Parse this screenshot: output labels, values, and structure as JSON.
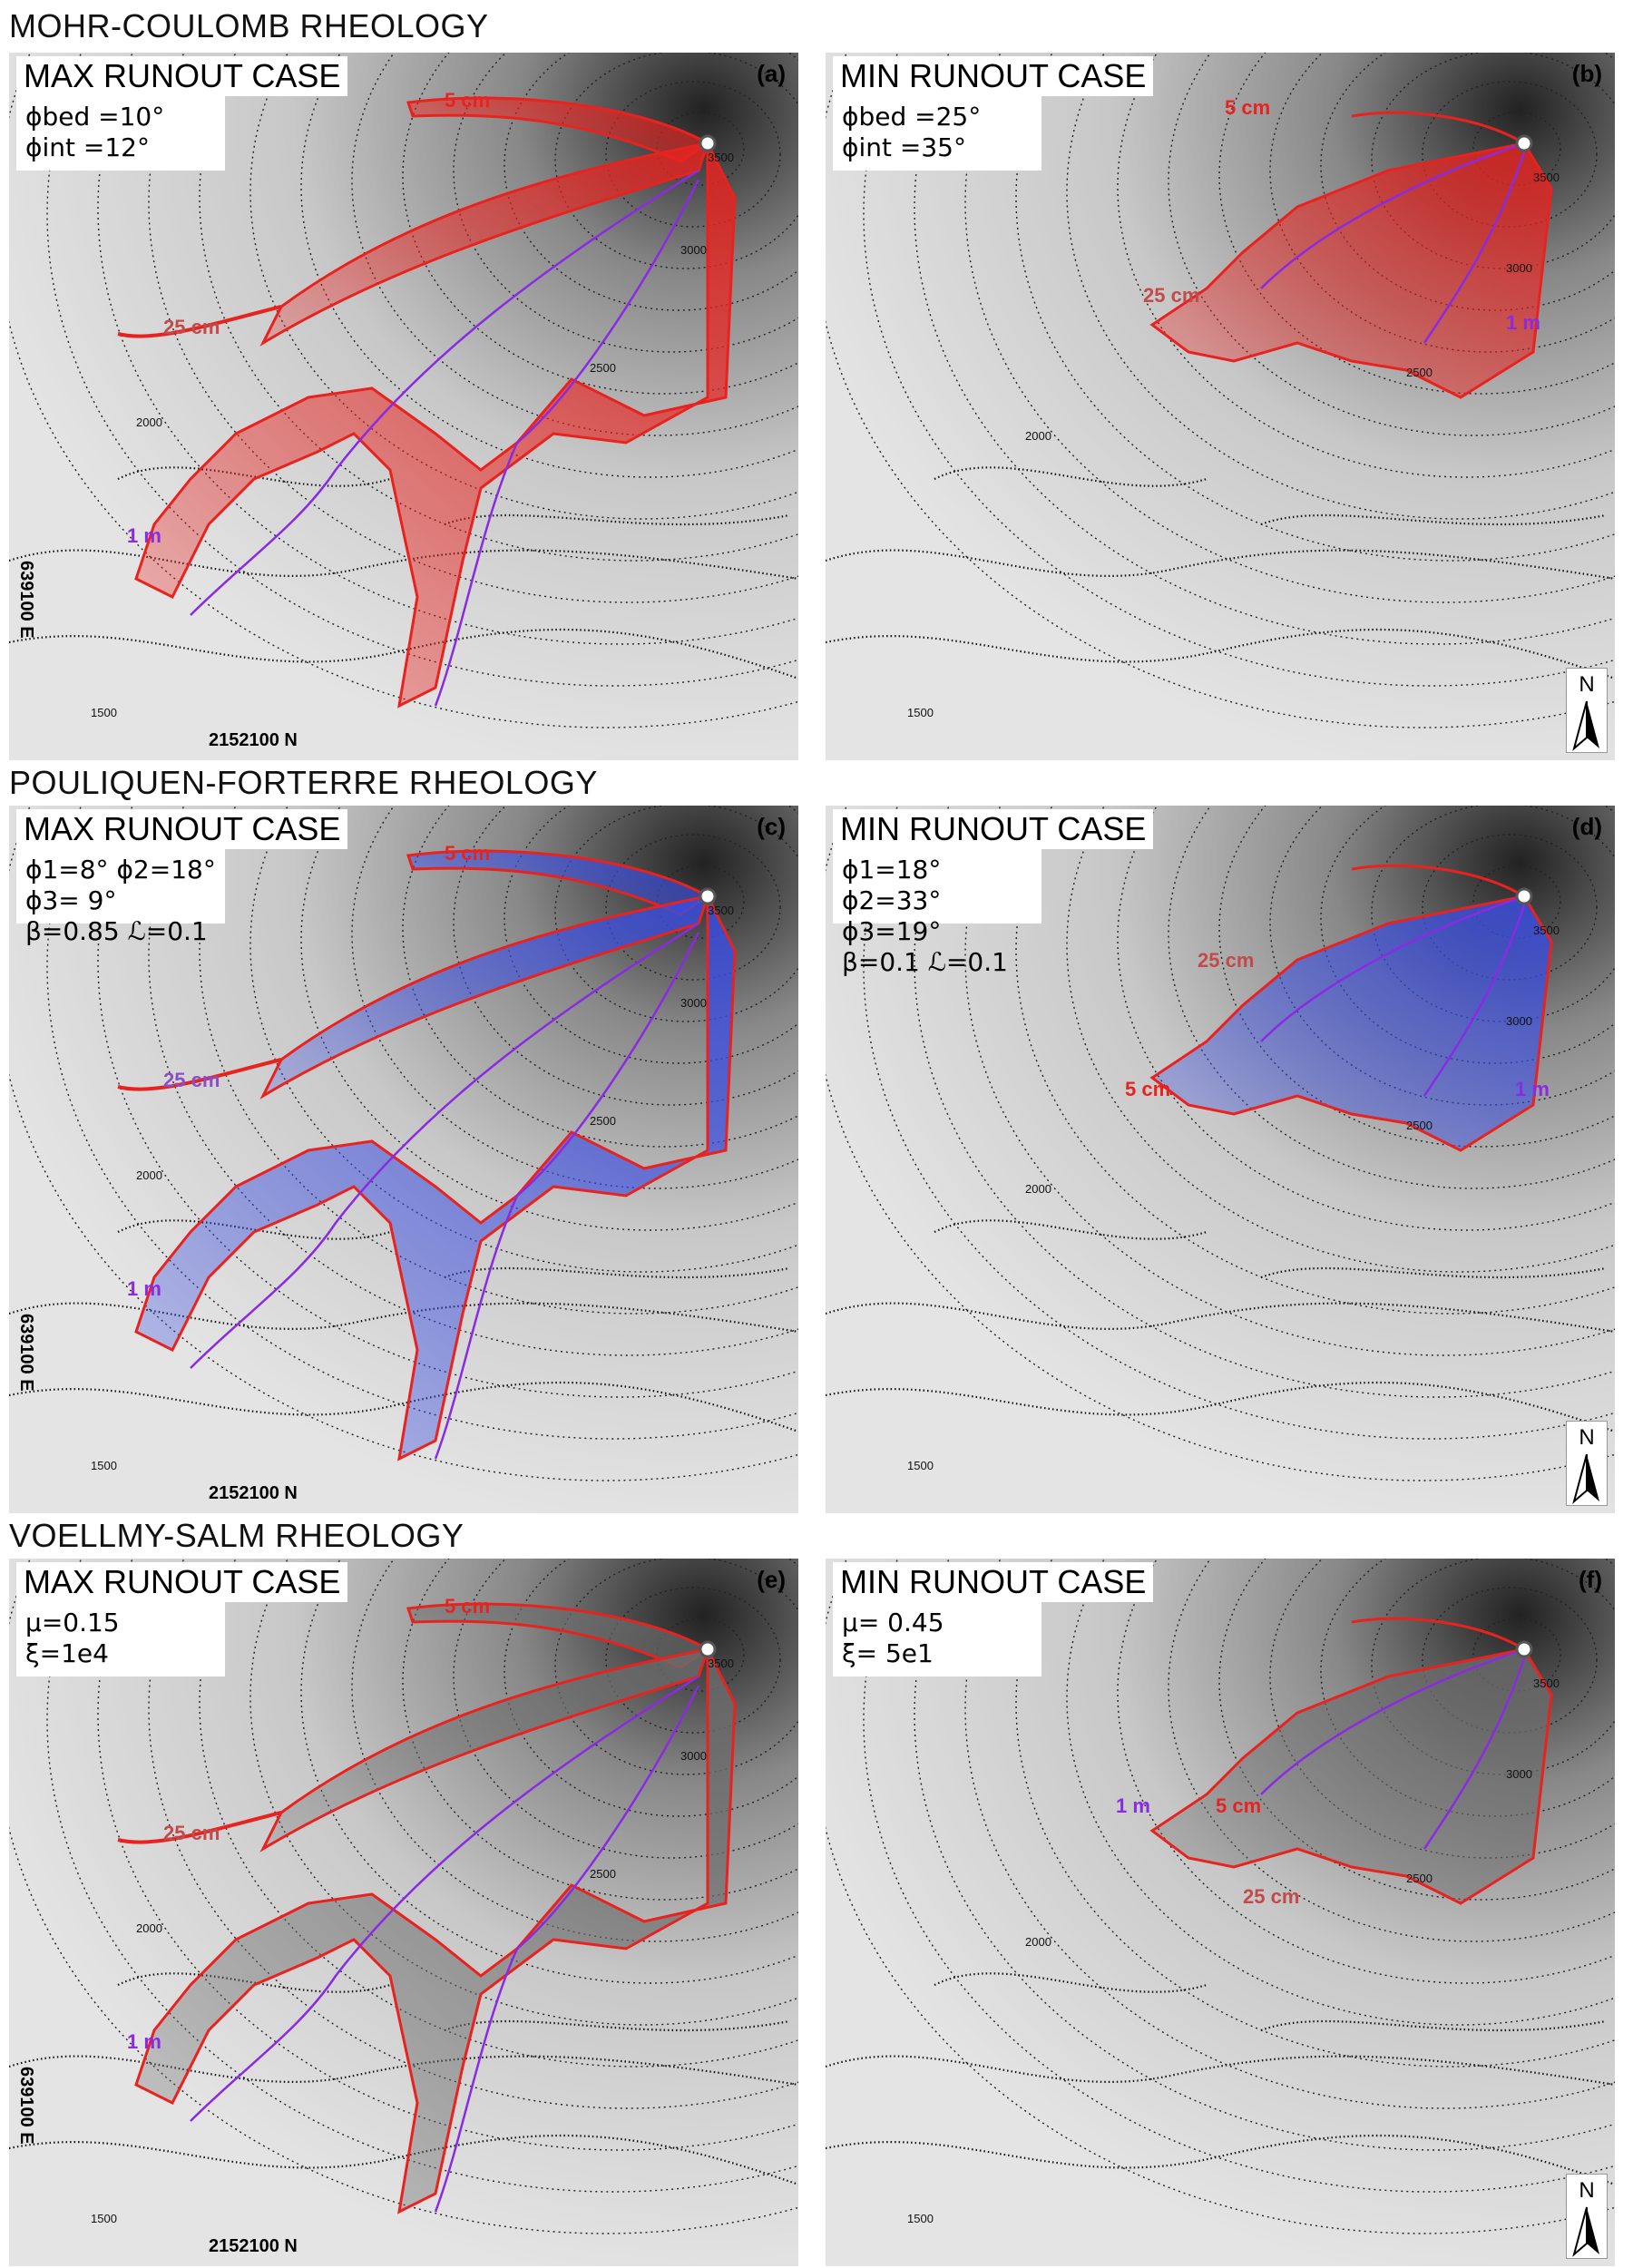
{
  "sections": [
    {
      "title": "MOHR-COULOMB RHEOLOGY"
    },
    {
      "title": "POULIQUEN-FORTERRE RHEOLOGY"
    },
    {
      "title": "VOELLMY-SALM RHEOLOGY"
    }
  ],
  "panels": [
    {
      "letter": "(a)",
      "case": "MAX RUNOUT CASE",
      "params_line1": "ϕbed =10°",
      "params_line2": "ϕint =12°",
      "labels": {
        "thin": "5 cm",
        "mid": "25 cm",
        "thick": "1 m"
      },
      "coord_n": "2152100 N",
      "coord_e": "639100 E",
      "contours": [
        "3500",
        "3000",
        "2500",
        "2000",
        "1500"
      ],
      "fill_color": "#e8231f"
    },
    {
      "letter": "(b)",
      "case": "MIN RUNOUT CASE",
      "params_line1": "ϕbed =25°",
      "params_line2": "ϕint =35°",
      "labels": {
        "thin": "5 cm",
        "mid": "25 cm",
        "thick": "1 m"
      },
      "contours": [
        "3500",
        "3000",
        "2500",
        "2000",
        "1500"
      ],
      "north_label": "N",
      "fill_color": "#e8231f"
    },
    {
      "letter": "(c)",
      "case": "MAX RUNOUT CASE",
      "params_line1": "ϕ1=8° ϕ2=18° ϕ3= 9°",
      "params_line2": "β=0.85    ℒ=0.1",
      "labels": {
        "thin": "5 cm",
        "mid": "25 cm",
        "thick": "1 m"
      },
      "coord_n": "2152100 N",
      "coord_e": "639100 E",
      "contours": [
        "3500",
        "3000",
        "2500",
        "2000",
        "1500"
      ],
      "fill_color": "#3a4de0"
    },
    {
      "letter": "(d)",
      "case": "MIN RUNOUT CASE",
      "params_line1": "ϕ1=18° ϕ2=33° ϕ3=19°",
      "params_line2": "β=0.1     ℒ=0.1",
      "labels": {
        "thin": "5 cm",
        "mid": "25 cm",
        "thick": "1 m"
      },
      "contours": [
        "3500",
        "3000",
        "2500",
        "2000",
        "1500"
      ],
      "north_label": "N",
      "fill_color": "#3a4de0"
    },
    {
      "letter": "(e)",
      "case": "MAX RUNOUT CASE",
      "params_line1": "μ=0.15",
      "params_line2": "ξ=1e4",
      "labels": {
        "thin": "5 cm",
        "mid": "25 cm",
        "thick": "1 m"
      },
      "coord_n": "2152100 N",
      "coord_e": "639100 E",
      "contours": [
        "3500",
        "3000",
        "2500",
        "2000",
        "1500"
      ],
      "fill_color": "#6b6b6b"
    },
    {
      "letter": "(f)",
      "case": "MIN RUNOUT CASE",
      "params_line1": "μ= 0.45",
      "params_line2": "ξ= 5e1",
      "labels": {
        "thin": "5 cm",
        "mid": "25 cm",
        "thick": "1 m"
      },
      "contours": [
        "3500",
        "3000",
        "2500",
        "2000",
        "1500"
      ],
      "north_label": "N",
      "fill_color": "#6b6b6b"
    }
  ],
  "colors": {
    "thin_contour": "#e8231f",
    "thick_contour": "#8a2be2",
    "mid_label_blue": "#8a4fc8"
  }
}
